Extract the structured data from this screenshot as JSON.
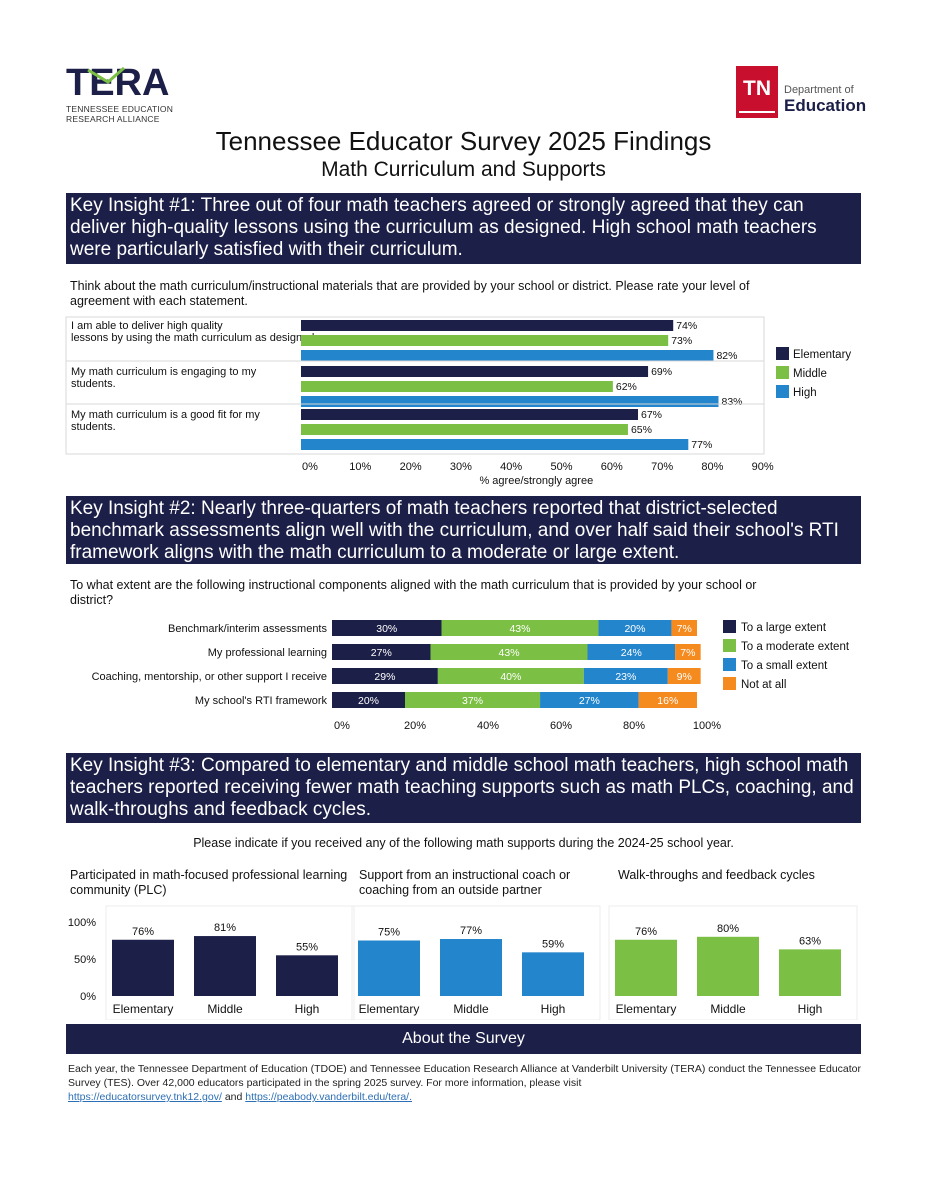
{
  "logos": {
    "tera": {
      "name": "TERA",
      "sub1": "TENNESSEE EDUCATION",
      "sub2": "RESEARCH ALLIANCE"
    },
    "tn": {
      "mark": "TN",
      "dept": "Department of",
      "edu": "Education"
    }
  },
  "title": "Tennessee Educator Survey 2025 Findings",
  "subtitle": "Math Curriculum and Supports",
  "insights": [
    "Key Insight #1: Three out of four math teachers agreed or strongly agreed that they can deliver high-quality lessons using the curriculum as designed. High school math teachers were particularly satisfied with their curriculum.",
    "Key Insight #2: Nearly three-quarters of math teachers reported that district-selected benchmark assessments align well with the curriculum, and over half said their school's RTI framework aligns with the math curriculum to a moderate or large extent.",
    "Key Insight #3: Compared to elementary and middle school math teachers, high school math teachers reported receiving fewer math teaching supports such as math PLCs, coaching, and walk-throughs and feedback cycles."
  ],
  "colors": {
    "navy": "#1c1f47",
    "green": "#7bbf44",
    "blue": "#2385cc",
    "orange": "#f58a1f"
  },
  "chart_data": [
    {
      "type": "bar",
      "orientation": "horizontal",
      "question": "Think about the math curriculum/instructional materials that are provided by your school or district. Please rate your level of agreement with each statement.",
      "categories": [
        "I am able to deliver high quality lessons by using the math curriculum as designed.",
        "My math curriculum is engaging to my students.",
        "My math curriculum is a good fit for my students."
      ],
      "series": [
        {
          "name": "Elementary",
          "values": [
            74,
            69,
            67
          ]
        },
        {
          "name": "Middle",
          "values": [
            73,
            62,
            65
          ]
        },
        {
          "name": "High",
          "values": [
            82,
            83,
            77
          ]
        }
      ],
      "xlabel": "% agree/strongly agree",
      "xlim": [
        0,
        90
      ],
      "xticks": [
        "0%",
        "10%",
        "20%",
        "30%",
        "40%",
        "50%",
        "60%",
        "70%",
        "80%",
        "90%"
      ],
      "legend": "right"
    },
    {
      "type": "bar",
      "orientation": "horizontal",
      "stacked": true,
      "question": "To what extent are the following instructional components aligned with the math curriculum that is provided by your school or district?",
      "categories": [
        "Benchmark/interim assessments",
        "My professional learning",
        "Coaching, mentorship, or other support I receive",
        "My school's RTI framework"
      ],
      "series": [
        {
          "name": "To a large extent",
          "values": [
            30,
            27,
            29,
            20
          ]
        },
        {
          "name": "To a moderate extent",
          "values": [
            43,
            43,
            40,
            37
          ]
        },
        {
          "name": "To a small extent",
          "values": [
            20,
            24,
            23,
            27
          ]
        },
        {
          "name": "Not at all",
          "values": [
            7,
            7,
            9,
            16
          ]
        }
      ],
      "xlim": [
        0,
        100
      ],
      "xticks": [
        "0%",
        "20%",
        "40%",
        "60%",
        "80%",
        "100%"
      ],
      "legend": "right"
    },
    {
      "type": "bar",
      "title": "Participated in math-focused professional learning community (PLC)",
      "categories": [
        "Elementary",
        "Middle",
        "High"
      ],
      "values": [
        76,
        81,
        55
      ],
      "ylim": [
        0,
        100
      ],
      "yticks": [
        "100%",
        "50%",
        "0%"
      ]
    },
    {
      "type": "bar",
      "title": "Support from an instructional coach or coaching from an outside partner",
      "categories": [
        "Elementary",
        "Middle",
        "High"
      ],
      "values": [
        75,
        77,
        59
      ],
      "ylim": [
        0,
        100
      ]
    },
    {
      "type": "bar",
      "title": "Walk-throughs and feedback cycles",
      "categories": [
        "Elementary",
        "Middle",
        "High"
      ],
      "values": [
        76,
        80,
        63
      ],
      "ylim": [
        0,
        100
      ]
    }
  ],
  "supports_question": "Please indicate if you received any of the following math supports during the 2024-25 school year.",
  "about": {
    "heading": "About the Survey",
    "text": "Each year, the Tennessee Department of Education (TDOE) and Tennessee Education Research Alliance at Vanderbilt University (TERA) conduct the Tennessee Educator Survey (TES). Over 42,000 educators participated in the spring 2025 survey. For more information, please visit",
    "link1": "https://educatorsurvey.tnk12.gov/",
    "and": "and",
    "link2": "https://peabody.vanderbilt.edu/tera/."
  }
}
